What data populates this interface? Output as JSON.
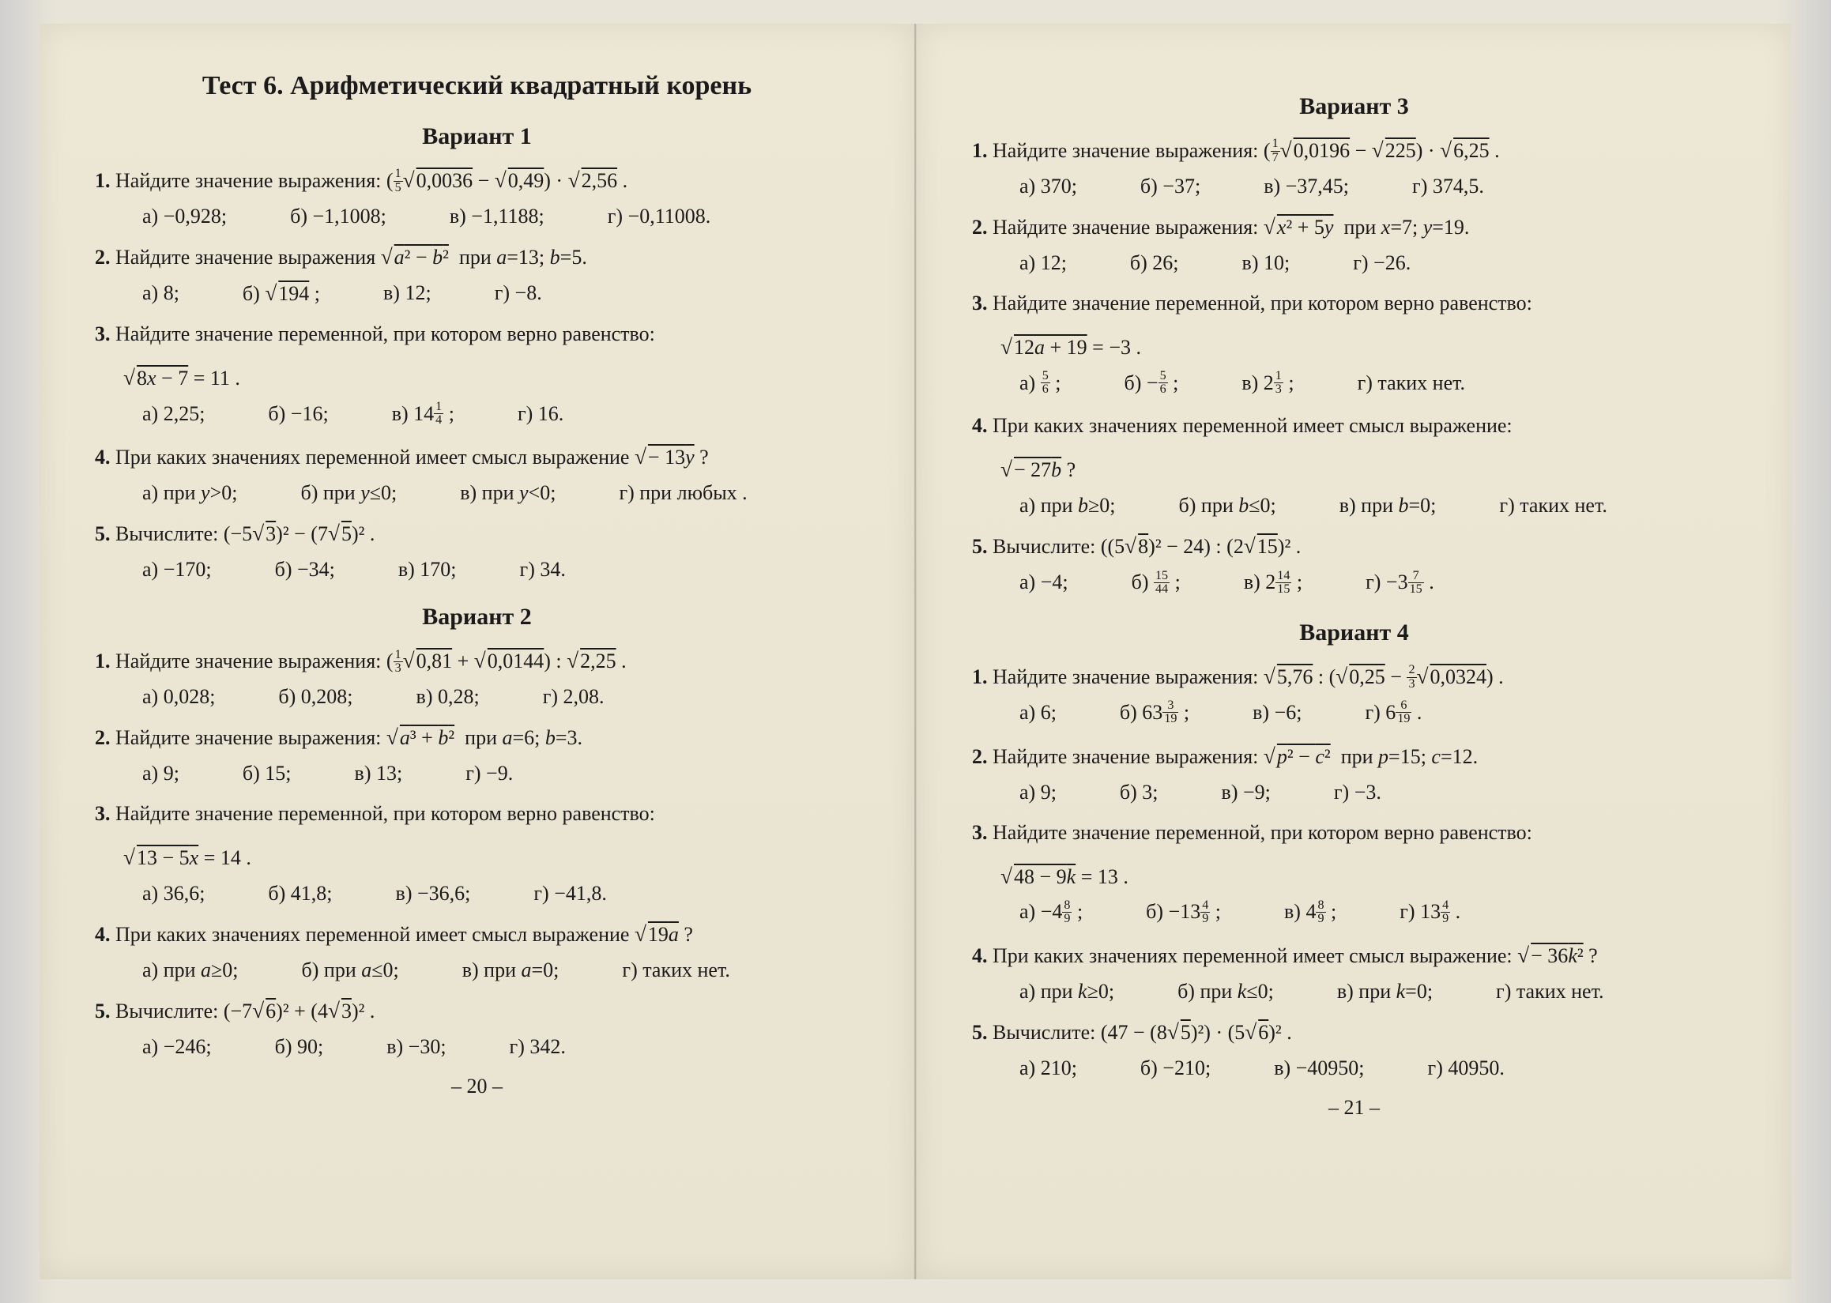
{
  "colors": {
    "paper": "#ebe5d3",
    "text": "#1a1a1a",
    "shadow": "rgba(0,0,0,0.08)"
  },
  "typography": {
    "family": "Times New Roman",
    "title_size_pt": 34,
    "variant_size_pt": 30,
    "body_size_pt": 26
  },
  "left_page": {
    "test_title": "Тест 6. Арифметический квадратный корень",
    "page_num": "– 20 –",
    "variants": [
      {
        "title": "Вариант 1",
        "questions": [
          {
            "n": "1.",
            "text": "Найдите значение выражения: (⅕√0,0036 − √0,49) · √2,56 .",
            "a": [
              "а) −0,928;",
              "б) −1,1008;",
              "в) −1,1188;",
              "г) −0,11008."
            ]
          },
          {
            "n": "2.",
            "text": "Найдите значение выражения √(a² − b²)  при a=13; b=5.",
            "a": [
              "а) 8;",
              "б) √194 ;",
              "в) 12;",
              "г) −8."
            ]
          },
          {
            "n": "3.",
            "text": "Найдите значение переменной, при котором верно равенство:",
            "cont": "√(8x − 7) = 11 .",
            "a": [
              "а) 2,25;",
              "б) −16;",
              "в) 14¼ ;",
              "г) 16."
            ]
          },
          {
            "n": "4.",
            "text": "При каких значениях переменной имеет смысл выражение √(−13y) ?",
            "a": [
              "а) при y>0;",
              "б) при y≤0;",
              "в) при y<0;",
              "г) при любых ."
            ]
          },
          {
            "n": "5.",
            "text": "Вычислите: (−5√3)² − (7√5)² .",
            "a": [
              "а) −170;",
              "б) −34;",
              "в) 170;",
              "г) 34."
            ]
          }
        ]
      },
      {
        "title": "Вариант 2",
        "questions": [
          {
            "n": "1.",
            "text": "Найдите значение выражения: (⅓√0,81 + √0,0144) : √2,25 .",
            "a": [
              "а) 0,028;",
              "б) 0,208;",
              "в) 0,28;",
              "г) 2,08."
            ]
          },
          {
            "n": "2.",
            "text": "Найдите значение выражения: √(a³ + b²)  при a=6; b=3.",
            "a": [
              "а) 9;",
              "б) 15;",
              "в) 13;",
              "г) −9."
            ]
          },
          {
            "n": "3.",
            "text": "Найдите значение переменной, при котором верно равенство:",
            "cont": "√(13 − 5x) = 14 .",
            "a": [
              "а) 36,6;",
              "б) 41,8;",
              "в) −36,6;",
              "г) −41,8."
            ]
          },
          {
            "n": "4.",
            "text": "При каких значениях переменной имеет смысл выражение √(19a) ?",
            "a": [
              "а) при a≥0;",
              "б) при a≤0;",
              "в) при a=0;",
              "г) таких нет."
            ]
          },
          {
            "n": "5.",
            "text": "Вычислите: (−7√6)² + (4√3)² .",
            "a": [
              "а) −246;",
              "б) 90;",
              "в) −30;",
              "г) 342."
            ]
          }
        ]
      }
    ]
  },
  "right_page": {
    "page_num": "– 21 –",
    "variants": [
      {
        "title": "Вариант 3",
        "questions": [
          {
            "n": "1.",
            "text": "Найдите значение выражения: (1/7 √0,0196 − √225) · √6,25 .",
            "a": [
              "а) 370;",
              "б) −37;",
              "в) −37,45;",
              "г) 374,5."
            ]
          },
          {
            "n": "2.",
            "text": "Найдите значение выражения: √(x² + 5y)  при x=7; y=19.",
            "a": [
              "а) 12;",
              "б) 26;",
              "в) 10;",
              "г) −26."
            ]
          },
          {
            "n": "3.",
            "text": "Найдите значение переменной, при котором верно равенство:",
            "cont": "√(12a + 19) = −3 .",
            "a": [
              "а) 5/6 ;",
              "б) −5/6 ;",
              "в) 2⅓ ;",
              "г) таких нет."
            ]
          },
          {
            "n": "4.",
            "text": "При каких значениях переменной имеет смысл выражение:",
            "cont": "√(−27b) ?",
            "a": [
              "а) при b≥0;",
              "б) при b≤0;",
              "в) при b=0;",
              "г) таких нет."
            ]
          },
          {
            "n": "5.",
            "text": "Вычислите: ((5√8)² − 24) : (2√15)² .",
            "a": [
              "а) −4;",
              "б) 15/44 ;",
              "в) 2 14/15 ;",
              "г) −3 7/15 ."
            ]
          }
        ]
      },
      {
        "title": "Вариант 4",
        "questions": [
          {
            "n": "1.",
            "text": "Найдите значение выражения: √5,76 : (√0,25 − ⅔ √0,0324) .",
            "a": [
              "а) 6;",
              "б) 63 3/19 ;",
              "в) −6;",
              "г) 6 6/19 ."
            ]
          },
          {
            "n": "2.",
            "text": "Найдите значение выражения: √(p² − c²)  при p=15; c=12.",
            "a": [
              "а) 9;",
              "б) 3;",
              "в) −9;",
              "г) −3."
            ]
          },
          {
            "n": "3.",
            "text": "Найдите значение переменной, при котором верно равенство:",
            "cont": "√(48 − 9k) = 13 .",
            "a": [
              "а) −4 8/9 ;",
              "б) −13 4/9 ;",
              "в) 4 8/9 ;",
              "г) 13 4/9 ."
            ]
          },
          {
            "n": "4.",
            "text": "При каких значениях переменной имеет смысл выражение: √(−36k²) ?",
            "a": [
              "а) при k≥0;",
              "б) при k≤0;",
              "в) при k=0;",
              "г) таких нет."
            ]
          },
          {
            "n": "5.",
            "text": "Вычислите: (47 − (8√5)²) · (5√6)² .",
            "a": [
              "а) 210;",
              "б) −210;",
              "в) −40950;",
              "г) 40950."
            ]
          }
        ]
      }
    ]
  }
}
